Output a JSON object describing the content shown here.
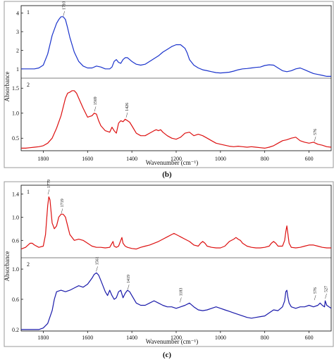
{
  "panels": [
    {
      "caption": "(b)",
      "xlabel": "Wavenumber (cm⁻¹)",
      "ylabel": "Absorbance",
      "x_ticks": [
        "1800",
        "1600",
        "1400",
        "1200",
        "1000",
        "800",
        "600"
      ]
    },
    {
      "caption": "(c)",
      "xlabel": "Wavenumber (cm⁻¹)",
      "ylabel": "Absorbance",
      "x_ticks": [
        "1800",
        "1600",
        "1400",
        "1200",
        "1000",
        "800",
        "600"
      ]
    }
  ],
  "chart_data": [
    {
      "type": "line",
      "caption": "(b)",
      "xlabel": "Wavenumber (cm⁻¹)",
      "ylabel": "Absorbance",
      "xlim": [
        1900,
        500
      ],
      "x_reversed": true,
      "grid": false,
      "subplots": [
        {
          "index_label": "1",
          "color": "#1a33cc",
          "ylim": [
            0.5,
            4.4
          ],
          "y_ticks": [
            "1",
            "2",
            "3",
            "4"
          ],
          "annotations": [
            {
              "text": "1710",
              "x": 1710,
              "y": 3.8
            }
          ],
          "x": [
            1900,
            1880,
            1860,
            1840,
            1820,
            1800,
            1780,
            1760,
            1740,
            1730,
            1720,
            1710,
            1700,
            1690,
            1680,
            1660,
            1640,
            1620,
            1600,
            1580,
            1560,
            1540,
            1520,
            1500,
            1490,
            1480,
            1470,
            1460,
            1450,
            1440,
            1430,
            1420,
            1410,
            1400,
            1380,
            1360,
            1340,
            1320,
            1300,
            1280,
            1260,
            1240,
            1220,
            1200,
            1180,
            1160,
            1150,
            1140,
            1120,
            1100,
            1080,
            1060,
            1040,
            1020,
            1000,
            980,
            960,
            940,
            920,
            900,
            880,
            860,
            840,
            820,
            800,
            780,
            760,
            740,
            720,
            700,
            680,
            660,
            640,
            620,
            600,
            580,
            560,
            540,
            520,
            500
          ],
          "values": [
            1.0,
            1.0,
            1.0,
            1.0,
            1.05,
            1.2,
            1.8,
            2.8,
            3.45,
            3.65,
            3.8,
            3.8,
            3.65,
            3.2,
            2.7,
            1.9,
            1.4,
            1.15,
            1.05,
            1.05,
            1.15,
            1.1,
            1.0,
            1.0,
            1.1,
            1.4,
            1.5,
            1.35,
            1.3,
            1.5,
            1.6,
            1.6,
            1.5,
            1.4,
            1.25,
            1.2,
            1.25,
            1.4,
            1.55,
            1.7,
            1.9,
            2.05,
            2.2,
            2.3,
            2.3,
            2.1,
            1.85,
            1.5,
            1.2,
            1.05,
            0.95,
            0.9,
            0.85,
            0.8,
            0.78,
            0.8,
            0.82,
            0.88,
            0.95,
            1.0,
            1.02,
            1.05,
            1.08,
            1.1,
            1.18,
            1.22,
            1.2,
            1.05,
            0.9,
            0.85,
            0.9,
            1.0,
            1.05,
            0.95,
            0.85,
            0.75,
            0.7,
            0.65,
            0.6,
            0.6
          ]
        },
        {
          "index_label": "2",
          "color": "#dd1111",
          "ylim": [
            0.25,
            1.7
          ],
          "y_ticks": [
            "0.5",
            "1.0",
            "1.5"
          ],
          "annotations": [
            {
              "text": "1569",
              "x": 1569,
              "y": 1.02
            },
            {
              "text": "1426",
              "x": 1426,
              "y": 0.9
            },
            {
              "text": "576",
              "x": 576,
              "y": 0.42
            }
          ],
          "x": [
            1900,
            1880,
            1860,
            1840,
            1820,
            1800,
            1780,
            1760,
            1740,
            1720,
            1700,
            1690,
            1680,
            1670,
            1660,
            1650,
            1640,
            1620,
            1600,
            1580,
            1570,
            1560,
            1550,
            1540,
            1520,
            1500,
            1490,
            1480,
            1470,
            1460,
            1450,
            1440,
            1430,
            1420,
            1410,
            1400,
            1380,
            1360,
            1340,
            1320,
            1300,
            1290,
            1280,
            1270,
            1260,
            1240,
            1220,
            1200,
            1180,
            1160,
            1140,
            1120,
            1100,
            1080,
            1060,
            1040,
            1020,
            1000,
            980,
            960,
            940,
            920,
            900,
            880,
            860,
            840,
            820,
            800,
            780,
            760,
            740,
            720,
            700,
            680,
            660,
            640,
            620,
            600,
            580,
            560,
            540,
            520,
            500
          ],
          "values": [
            0.3,
            0.3,
            0.31,
            0.32,
            0.33,
            0.35,
            0.4,
            0.5,
            0.7,
            0.95,
            1.3,
            1.4,
            1.42,
            1.45,
            1.45,
            1.4,
            1.3,
            1.1,
            0.92,
            0.95,
            1.0,
            0.98,
            0.85,
            0.75,
            0.65,
            0.62,
            0.72,
            0.65,
            0.6,
            0.8,
            0.85,
            0.83,
            0.88,
            0.85,
            0.82,
            0.75,
            0.6,
            0.55,
            0.55,
            0.6,
            0.65,
            0.67,
            0.65,
            0.67,
            0.62,
            0.55,
            0.5,
            0.48,
            0.52,
            0.6,
            0.62,
            0.55,
            0.58,
            0.55,
            0.5,
            0.45,
            0.4,
            0.38,
            0.36,
            0.34,
            0.33,
            0.34,
            0.33,
            0.32,
            0.33,
            0.32,
            0.31,
            0.3,
            0.32,
            0.35,
            0.4,
            0.45,
            0.47,
            0.5,
            0.52,
            0.45,
            0.42,
            0.4,
            0.42,
            0.38,
            0.36,
            0.33,
            0.32
          ]
        }
      ]
    },
    {
      "type": "line",
      "caption": "(c)",
      "xlabel": "Wavenumber (cm⁻¹)",
      "ylabel": "Absorbance",
      "xlim": [
        1900,
        500
      ],
      "x_reversed": true,
      "grid": false,
      "subplots": [
        {
          "index_label": "1",
          "color": "#dd1111",
          "ylim": [
            0.3,
            1.55
          ],
          "y_ticks": [
            "0.6",
            "1.0",
            "1.4"
          ],
          "annotations": [
            {
              "text": "1779",
              "x": 1779,
              "y": 1.38
            },
            {
              "text": "1719",
              "x": 1719,
              "y": 1.05
            }
          ],
          "x": [
            1900,
            1880,
            1860,
            1850,
            1840,
            1820,
            1800,
            1790,
            1780,
            1775,
            1770,
            1760,
            1750,
            1740,
            1730,
            1720,
            1710,
            1700,
            1690,
            1680,
            1660,
            1640,
            1620,
            1600,
            1580,
            1560,
            1540,
            1520,
            1500,
            1490,
            1485,
            1480,
            1470,
            1460,
            1450,
            1445,
            1440,
            1430,
            1420,
            1400,
            1380,
            1360,
            1340,
            1320,
            1300,
            1280,
            1260,
            1240,
            1220,
            1210,
            1200,
            1180,
            1160,
            1140,
            1120,
            1100,
            1090,
            1080,
            1070,
            1060,
            1040,
            1020,
            1000,
            980,
            960,
            940,
            930,
            920,
            910,
            900,
            880,
            860,
            840,
            820,
            800,
            780,
            770,
            760,
            750,
            740,
            720,
            710,
            705,
            700,
            695,
            690,
            680,
            660,
            640,
            620,
            600,
            580,
            560,
            540,
            520,
            500
          ],
          "values": [
            0.45,
            0.48,
            0.55,
            0.55,
            0.52,
            0.48,
            0.5,
            0.7,
            1.2,
            1.35,
            1.3,
            0.9,
            0.8,
            0.85,
            1.0,
            1.05,
            1.05,
            1.0,
            0.85,
            0.7,
            0.6,
            0.62,
            0.6,
            0.55,
            0.5,
            0.48,
            0.48,
            0.47,
            0.48,
            0.55,
            0.58,
            0.5,
            0.48,
            0.5,
            0.6,
            0.65,
            0.55,
            0.5,
            0.48,
            0.46,
            0.45,
            0.48,
            0.5,
            0.52,
            0.55,
            0.58,
            0.62,
            0.66,
            0.7,
            0.72,
            0.7,
            0.66,
            0.62,
            0.58,
            0.52,
            0.5,
            0.55,
            0.58,
            0.55,
            0.5,
            0.48,
            0.47,
            0.47,
            0.5,
            0.58,
            0.62,
            0.65,
            0.62,
            0.6,
            0.55,
            0.5,
            0.48,
            0.47,
            0.47,
            0.48,
            0.5,
            0.55,
            0.58,
            0.55,
            0.5,
            0.5,
            0.6,
            0.75,
            0.85,
            0.7,
            0.55,
            0.48,
            0.47,
            0.48,
            0.5,
            0.52,
            0.52,
            0.5,
            0.48,
            0.47,
            0.47
          ]
        },
        {
          "index_label": "2",
          "color": "#1a1aaa",
          "ylim": [
            0.18,
            1.15
          ],
          "y_ticks": [
            "0.2",
            "0.6",
            "1.0"
          ],
          "annotations": [
            {
              "text": "1561",
              "x": 1561,
              "y": 0.96
            },
            {
              "text": "1419",
              "x": 1419,
              "y": 0.72
            },
            {
              "text": "1183",
              "x": 1183,
              "y": 0.55
            },
            {
              "text": "576",
              "x": 576,
              "y": 0.58
            },
            {
              "text": "527",
              "x": 527,
              "y": 0.6
            }
          ],
          "x": [
            1900,
            1880,
            1860,
            1840,
            1820,
            1800,
            1780,
            1760,
            1750,
            1740,
            1720,
            1700,
            1680,
            1660,
            1640,
            1620,
            1600,
            1580,
            1570,
            1560,
            1550,
            1540,
            1520,
            1510,
            1500,
            1490,
            1480,
            1470,
            1460,
            1450,
            1440,
            1430,
            1420,
            1410,
            1400,
            1380,
            1360,
            1340,
            1320,
            1300,
            1280,
            1260,
            1240,
            1220,
            1200,
            1180,
            1160,
            1140,
            1120,
            1100,
            1080,
            1060,
            1040,
            1020,
            1000,
            980,
            960,
            940,
            920,
            900,
            880,
            860,
            840,
            820,
            800,
            780,
            760,
            740,
            720,
            710,
            705,
            700,
            695,
            690,
            680,
            660,
            640,
            620,
            600,
            580,
            560,
            550,
            540,
            530,
            527,
            520,
            500
          ],
          "values": [
            0.2,
            0.2,
            0.2,
            0.2,
            0.2,
            0.22,
            0.28,
            0.45,
            0.6,
            0.7,
            0.72,
            0.7,
            0.72,
            0.75,
            0.78,
            0.76,
            0.8,
            0.88,
            0.93,
            0.95,
            0.92,
            0.85,
            0.7,
            0.65,
            0.72,
            0.65,
            0.6,
            0.62,
            0.7,
            0.72,
            0.62,
            0.68,
            0.72,
            0.7,
            0.65,
            0.55,
            0.52,
            0.52,
            0.55,
            0.58,
            0.55,
            0.52,
            0.5,
            0.5,
            0.48,
            0.5,
            0.52,
            0.55,
            0.5,
            0.46,
            0.45,
            0.46,
            0.48,
            0.5,
            0.48,
            0.46,
            0.44,
            0.42,
            0.4,
            0.38,
            0.36,
            0.35,
            0.36,
            0.37,
            0.38,
            0.42,
            0.46,
            0.45,
            0.5,
            0.58,
            0.7,
            0.72,
            0.62,
            0.55,
            0.5,
            0.48,
            0.5,
            0.5,
            0.52,
            0.5,
            0.52,
            0.55,
            0.52,
            0.5,
            0.58,
            0.52,
            0.48
          ]
        }
      ]
    }
  ]
}
